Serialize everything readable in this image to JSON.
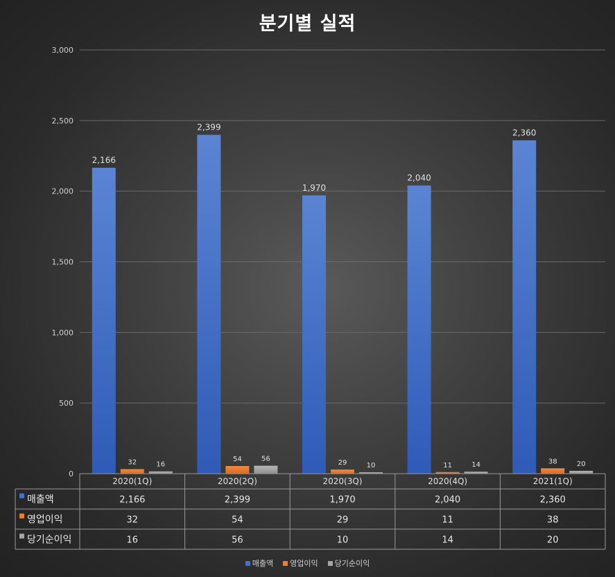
{
  "chart_data": {
    "type": "bar",
    "title": "분기별 실적",
    "categories": [
      "2020(1Q)",
      "2020(2Q)",
      "2020(3Q)",
      "2020(4Q)",
      "2021(1Q)"
    ],
    "series": [
      {
        "name": "매출액",
        "values": [
          2166,
          2399,
          1970,
          2040,
          2360
        ],
        "labels": [
          "2,166",
          "2,399",
          "1,970",
          "2,040",
          "2,360"
        ],
        "color": "#4472c4"
      },
      {
        "name": "영업이익",
        "values": [
          32,
          54,
          29,
          11,
          38
        ],
        "labels": [
          "32",
          "54",
          "29",
          "11",
          "38"
        ],
        "color": "#ed7d31"
      },
      {
        "name": "당기순이익",
        "values": [
          16,
          56,
          10,
          14,
          20
        ],
        "labels": [
          "16",
          "56",
          "10",
          "14",
          "20"
        ],
        "color": "#a5a5a5"
      }
    ],
    "ylim": [
      0,
      3000
    ],
    "yticks": [
      0,
      500,
      1000,
      1500,
      2000,
      2500,
      3000
    ],
    "ytick_labels": [
      "0",
      "500",
      "1,000",
      "1,500",
      "2,000",
      "2,500",
      "3,000"
    ],
    "grid": true,
    "legend": "bottom",
    "data_table": true
  }
}
